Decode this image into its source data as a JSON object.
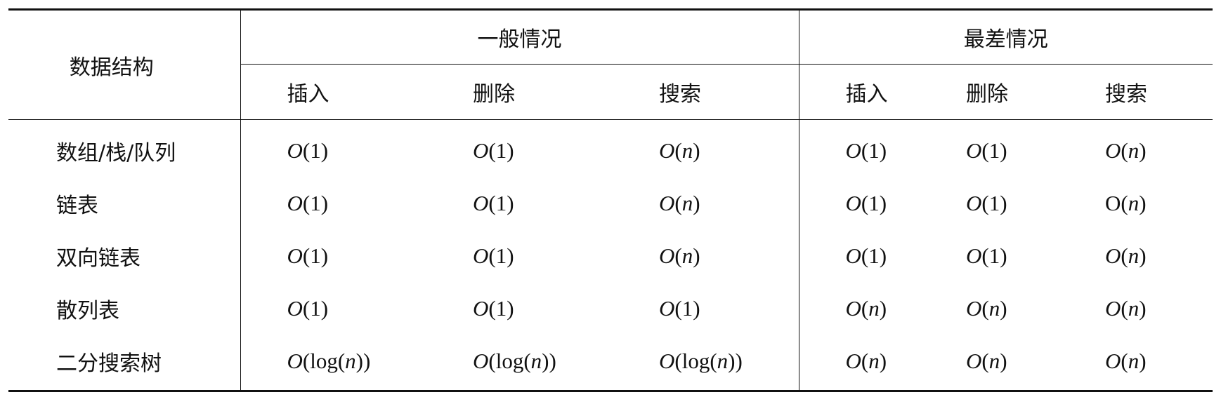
{
  "table": {
    "row_header": "数据结构",
    "groups": [
      {
        "label": "一般情况",
        "columns": [
          "插入",
          "删除",
          "搜索"
        ]
      },
      {
        "label": "最差情况",
        "columns": [
          "插入",
          "删除",
          "搜索"
        ]
      }
    ],
    "rows": [
      {
        "name": "数组/栈/队列",
        "values": [
          "O(1)",
          "O(1)",
          "O(n)",
          "O(1)",
          "O(1)",
          "O(n)"
        ]
      },
      {
        "name": "链表",
        "values": [
          "O(1)",
          "O(1)",
          "O(n)",
          "O(1)",
          "O(1)",
          "O(n)"
        ]
      },
      {
        "name": "双向链表",
        "values": [
          "O(1)",
          "O(1)",
          "O(n)",
          "O(1)",
          "O(1)",
          "O(n)"
        ]
      },
      {
        "name": "散列表",
        "values": [
          "O(1)",
          "O(1)",
          "O(1)",
          "O(n)",
          "O(n)",
          "O(n)"
        ]
      },
      {
        "name": "二分搜索树",
        "values": [
          "O(log(n))",
          "O(log(n))",
          "O(log(n))",
          "O(n)",
          "O(n)",
          "O(n)"
        ]
      }
    ]
  }
}
